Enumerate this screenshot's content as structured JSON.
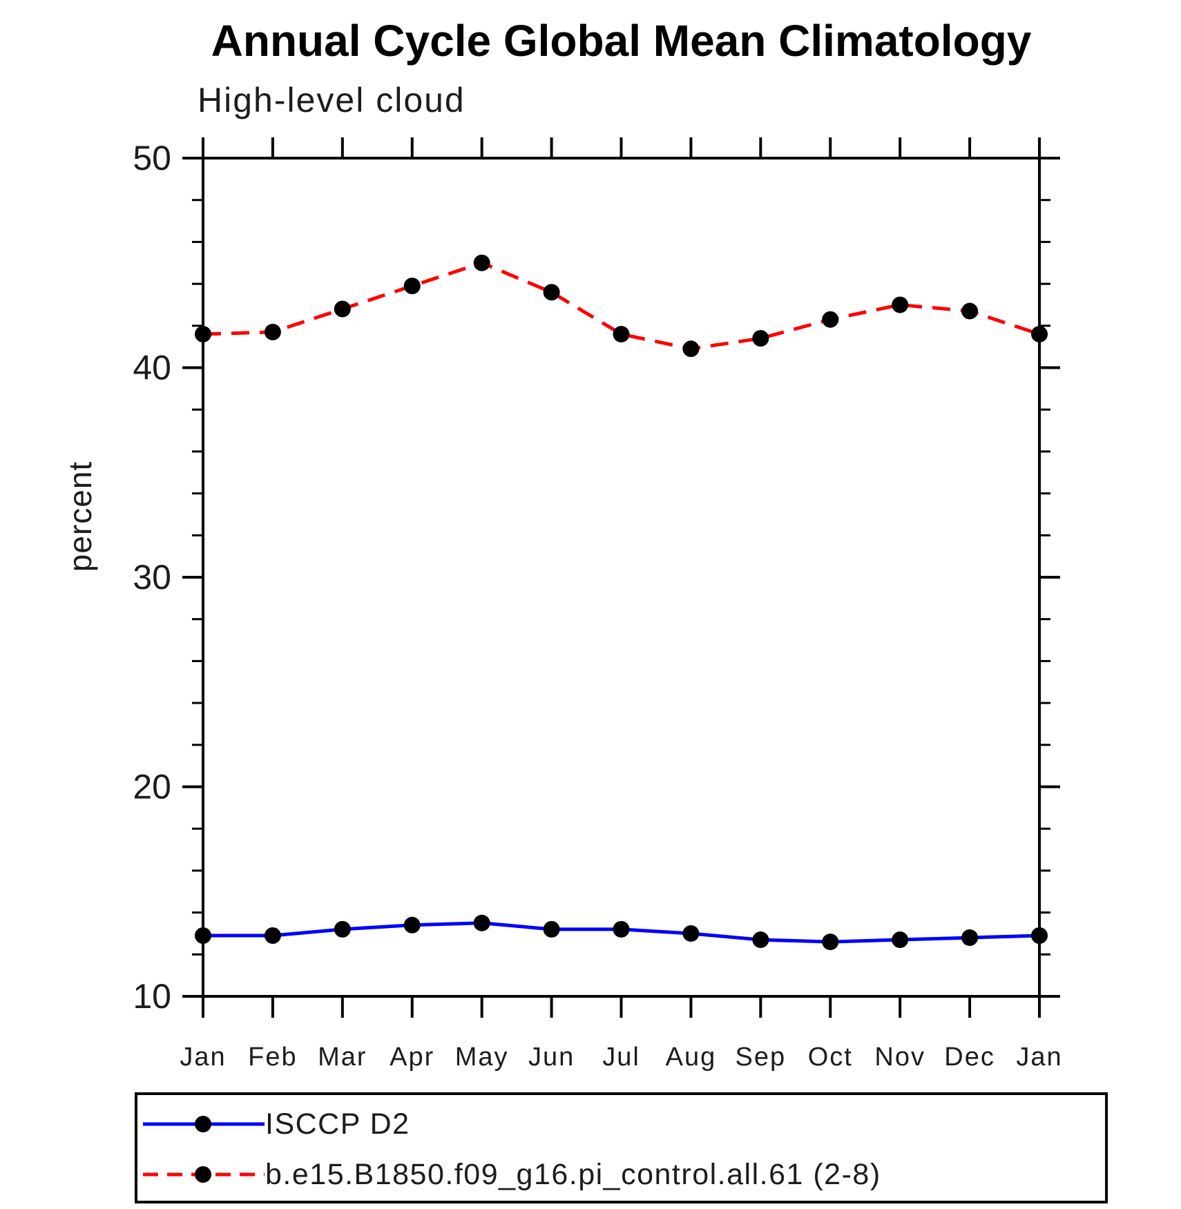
{
  "header": {
    "title": "Annual Cycle Global Mean Climatology",
    "subtitle": "High-level cloud"
  },
  "axes": {
    "y_label": "percent",
    "y_ticks": [
      "10",
      "20",
      "30",
      "40",
      "50"
    ],
    "y_minor_step": 2,
    "x_tick_labels": [
      "Jan",
      "Feb",
      "Mar",
      "Apr",
      "May",
      "Jun",
      "Jul",
      "Aug",
      "Sep",
      "Oct",
      "Nov",
      "Dec",
      "Jan"
    ]
  },
  "chart_data": {
    "type": "line",
    "title": "Annual Cycle Global Mean Climatology",
    "subtitle": "High-level cloud",
    "xlabel": "",
    "ylabel": "percent",
    "ylim": [
      10,
      50
    ],
    "grid": false,
    "legend_position": "bottom-left",
    "x_categories": [
      "Jan",
      "Feb",
      "Mar",
      "Apr",
      "May",
      "Jun",
      "Jul",
      "Aug",
      "Sep",
      "Oct",
      "Nov",
      "Dec",
      "Jan"
    ],
    "series": [
      {
        "name": "ISCCP D2",
        "color": "#0000ff",
        "line_style": "solid",
        "marker": "circle",
        "marker_color": "#000000",
        "values": [
          12.9,
          12.9,
          13.2,
          13.4,
          13.5,
          13.2,
          13.2,
          13.0,
          12.7,
          12.6,
          12.7,
          12.8,
          12.9
        ]
      },
      {
        "name": "b.e15.B1850.f09_g16.pi_control.all.61 (2-8)",
        "color": "#ff0000",
        "line_style": "dashed",
        "marker": "circle",
        "marker_color": "#000000",
        "values": [
          41.6,
          41.7,
          42.8,
          43.9,
          45.0,
          43.6,
          41.6,
          40.9,
          41.4,
          42.3,
          43.0,
          42.7,
          41.6
        ]
      }
    ]
  },
  "legend": {
    "items": [
      {
        "label": "ISCCP D2"
      },
      {
        "label": "b.e15.B1850.f09_g16.pi_control.all.61 (2-8)"
      }
    ]
  },
  "colors": {
    "series1": "#0000ff",
    "series2": "#ff0000",
    "marker": "#000000",
    "axis": "#000000",
    "background": "#ffffff"
  }
}
